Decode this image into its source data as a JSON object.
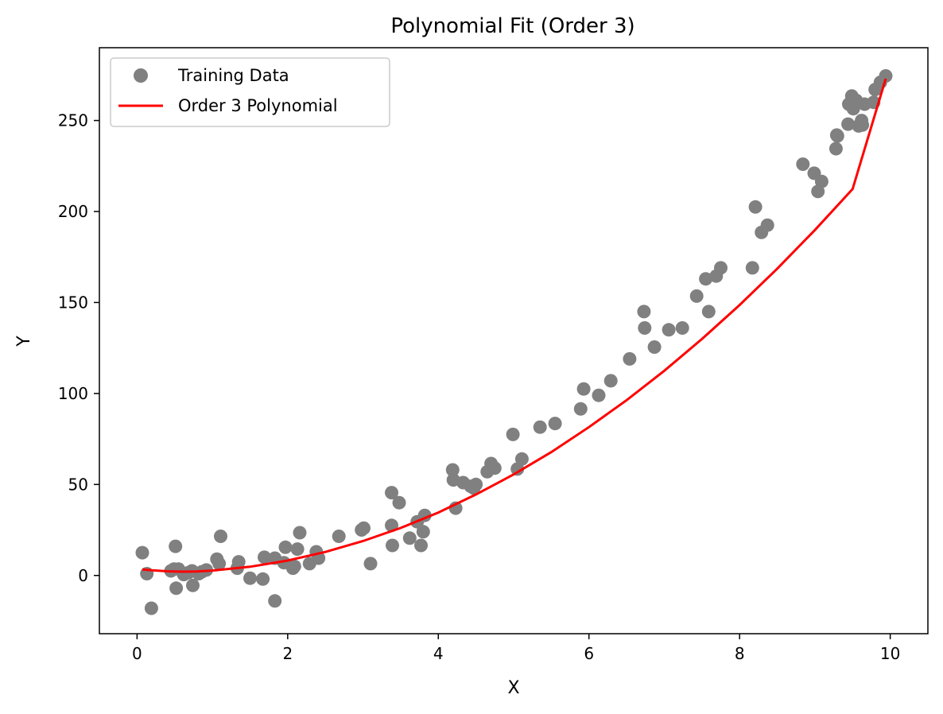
{
  "chart_data": {
    "type": "scatter",
    "title": "Polynomial Fit (Order 3)",
    "xlabel": "X",
    "ylabel": "Y",
    "xlim": [
      -0.5,
      10.5
    ],
    "ylim": [
      -32,
      290
    ],
    "xticks": [
      0,
      2,
      4,
      6,
      8,
      10
    ],
    "yticks": [
      0,
      50,
      100,
      150,
      200,
      250
    ],
    "grid": false,
    "legend_position": "upper left",
    "colors": {
      "scatter": "#808080",
      "line": "#ff0000"
    },
    "series": [
      {
        "name": "Training Data",
        "kind": "scatter",
        "points": [
          [
            0.07,
            12.5
          ],
          [
            0.13,
            1.0
          ],
          [
            0.19,
            -18.0
          ],
          [
            0.45,
            2.5
          ],
          [
            0.49,
            3.5
          ],
          [
            0.51,
            16.0
          ],
          [
            0.52,
            -7.0
          ],
          [
            0.55,
            3.5
          ],
          [
            0.62,
            0.5
          ],
          [
            0.68,
            1.5
          ],
          [
            0.73,
            2.5
          ],
          [
            0.74,
            -5.5
          ],
          [
            0.82,
            1.0
          ],
          [
            0.86,
            2.0
          ],
          [
            0.92,
            3.0
          ],
          [
            1.06,
            9.0
          ],
          [
            1.09,
            6.5
          ],
          [
            1.11,
            21.5
          ],
          [
            1.33,
            4.0
          ],
          [
            1.35,
            7.5
          ],
          [
            1.5,
            -1.5
          ],
          [
            1.67,
            -2.0
          ],
          [
            1.69,
            10.0
          ],
          [
            1.83,
            9.5
          ],
          [
            1.83,
            -14.0
          ],
          [
            1.95,
            7.0
          ],
          [
            1.97,
            15.5
          ],
          [
            2.07,
            4.0
          ],
          [
            2.09,
            5.0
          ],
          [
            2.13,
            14.5
          ],
          [
            2.16,
            23.5
          ],
          [
            2.29,
            6.5
          ],
          [
            2.38,
            13.0
          ],
          [
            2.41,
            9.5
          ],
          [
            2.68,
            21.5
          ],
          [
            2.98,
            25.0
          ],
          [
            3.01,
            26.0
          ],
          [
            3.1,
            6.5
          ],
          [
            3.38,
            45.5
          ],
          [
            3.38,
            27.5
          ],
          [
            3.39,
            16.5
          ],
          [
            3.48,
            40.0
          ],
          [
            3.62,
            20.5
          ],
          [
            3.72,
            29.5
          ],
          [
            3.77,
            16.5
          ],
          [
            3.8,
            24.0
          ],
          [
            3.82,
            33.0
          ],
          [
            4.19,
            58.0
          ],
          [
            4.2,
            52.5
          ],
          [
            4.23,
            37.0
          ],
          [
            4.33,
            51.0
          ],
          [
            4.43,
            49.0
          ],
          [
            4.47,
            48.0
          ],
          [
            4.5,
            50.0
          ],
          [
            4.65,
            57.0
          ],
          [
            4.7,
            61.5
          ],
          [
            4.75,
            59.0
          ],
          [
            4.99,
            77.5
          ],
          [
            5.05,
            58.5
          ],
          [
            5.11,
            64.0
          ],
          [
            5.35,
            81.5
          ],
          [
            5.55,
            83.5
          ],
          [
            5.89,
            91.5
          ],
          [
            5.93,
            102.5
          ],
          [
            6.13,
            99.0
          ],
          [
            6.29,
            107.0
          ],
          [
            6.54,
            119.0
          ],
          [
            6.73,
            145.0
          ],
          [
            6.74,
            136.0
          ],
          [
            6.87,
            125.5
          ],
          [
            7.06,
            135.0
          ],
          [
            7.24,
            136.0
          ],
          [
            7.43,
            153.5
          ],
          [
            7.55,
            163.0
          ],
          [
            7.59,
            145.0
          ],
          [
            7.69,
            164.5
          ],
          [
            7.75,
            169.0
          ],
          [
            8.17,
            169.0
          ],
          [
            8.21,
            202.5
          ],
          [
            8.29,
            188.5
          ],
          [
            8.37,
            192.5
          ],
          [
            8.84,
            226.0
          ],
          [
            8.99,
            221.0
          ],
          [
            9.04,
            211.0
          ],
          [
            9.09,
            216.5
          ],
          [
            9.28,
            234.5
          ],
          [
            9.29,
            242.0
          ],
          [
            9.3,
            241.5
          ],
          [
            9.44,
            248.0
          ],
          [
            9.45,
            259.0
          ],
          [
            9.49,
            263.5
          ],
          [
            9.51,
            256.5
          ],
          [
            9.55,
            261.0
          ],
          [
            9.58,
            247.0
          ],
          [
            9.62,
            250.0
          ],
          [
            9.63,
            247.5
          ],
          [
            9.66,
            259.0
          ],
          [
            9.78,
            260.0
          ],
          [
            9.8,
            267.0
          ],
          [
            9.87,
            271.0
          ],
          [
            9.94,
            274.5
          ]
        ]
      },
      {
        "name": "Order 3 Polynomial",
        "kind": "line",
        "points": [
          [
            0.07,
            3.3
          ],
          [
            0.2,
            2.8
          ],
          [
            0.4,
            2.3
          ],
          [
            0.6,
            2.1
          ],
          [
            0.8,
            2.2
          ],
          [
            1.0,
            2.7
          ],
          [
            1.5,
            4.8
          ],
          [
            2.0,
            8.2
          ],
          [
            2.5,
            12.9
          ],
          [
            3.0,
            18.9
          ],
          [
            3.5,
            26.1
          ],
          [
            4.0,
            34.6
          ],
          [
            4.5,
            44.5
          ],
          [
            5.0,
            55.5
          ],
          [
            5.5,
            67.8
          ],
          [
            6.0,
            81.5
          ],
          [
            6.5,
            96.3
          ],
          [
            7.0,
            112.5
          ],
          [
            7.5,
            129.9
          ],
          [
            8.0,
            148.6
          ],
          [
            8.5,
            168.6
          ],
          [
            9.0,
            189.8
          ],
          [
            9.5,
            212.3
          ],
          [
            9.94,
            273.0
          ]
        ]
      }
    ]
  }
}
